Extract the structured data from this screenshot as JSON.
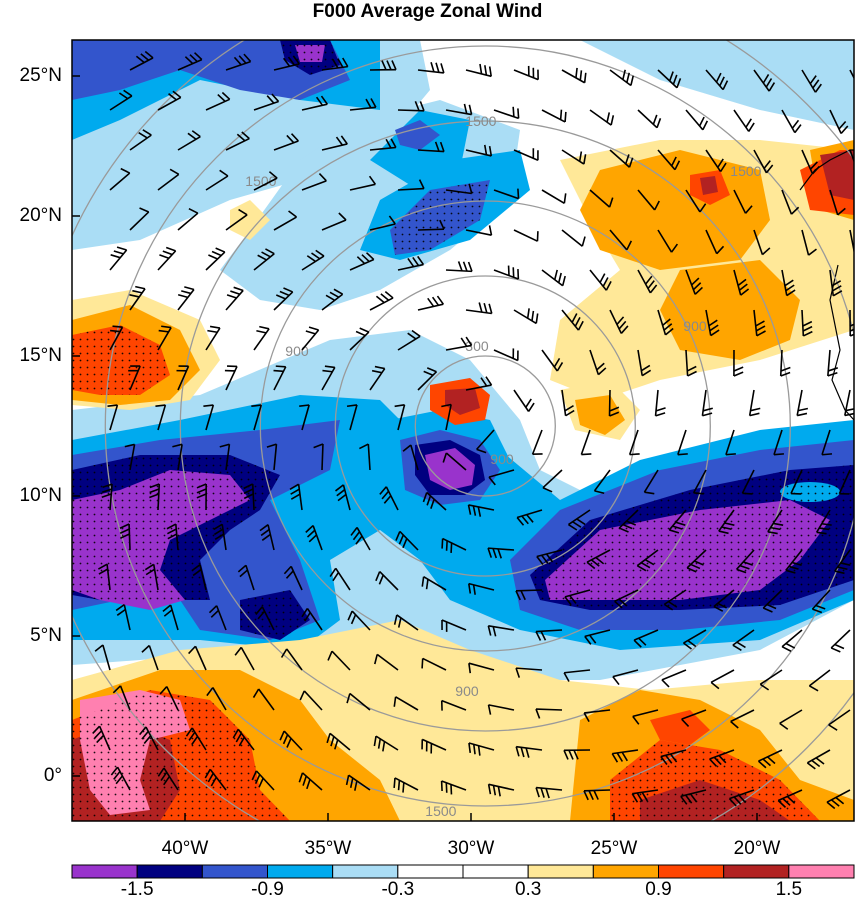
{
  "title": "F000 Average Zonal Wind",
  "lat_labels": [
    {
      "text": "25°N",
      "lat": 25
    },
    {
      "text": "20°N",
      "lat": 20
    },
    {
      "text": "15°N",
      "lat": 15
    },
    {
      "text": "10°N",
      "lat": 10
    },
    {
      "text": "5°N",
      "lat": 5
    },
    {
      "text": "0°",
      "lat": 0
    }
  ],
  "lon_labels": [
    {
      "text": "40°W",
      "lon": -40
    },
    {
      "text": "35°W",
      "lon": -35
    },
    {
      "text": "30°W",
      "lon": -30
    },
    {
      "text": "25°W",
      "lon": -25
    },
    {
      "text": "20°W",
      "lon": -20
    }
  ],
  "colorbar": {
    "colors": [
      "#9933cc",
      "#000080",
      "#3355cc",
      "#00aaee",
      "#aaddf5",
      "#ffffff",
      "#ffffff",
      "#ffe898",
      "#ffa500",
      "#ff4500",
      "#b22222",
      "#ff80b0"
    ],
    "labels": [
      "-1.5",
      "-0.9",
      "-0.3",
      "0.3",
      "0.9",
      "1.5"
    ]
  },
  "range_rings": {
    "labels": [
      "300",
      "900",
      "1500"
    ],
    "center": {
      "lat": 12.5,
      "lon": -29.5
    }
  },
  "colors": {
    "ring": "#9a9a9a",
    "barb": "#000000",
    "frame": "#000000"
  }
}
